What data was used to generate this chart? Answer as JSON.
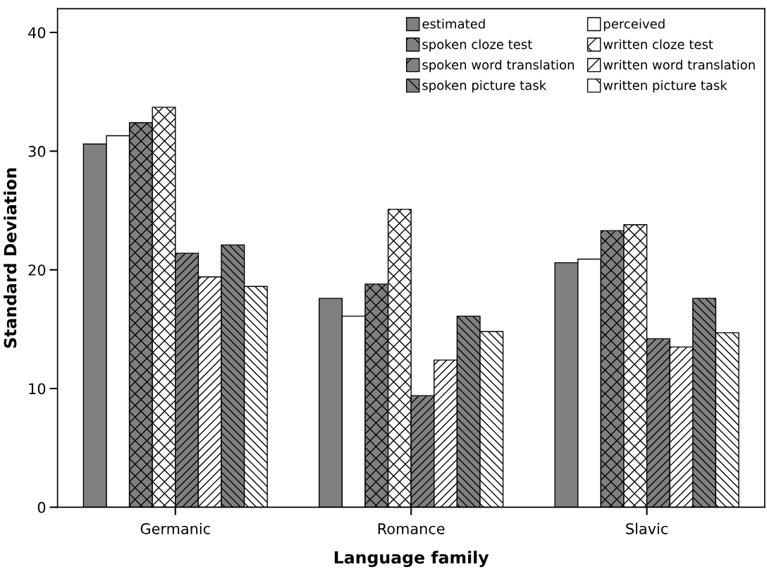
{
  "chart_data": {
    "type": "bar",
    "xlabel": "Language family",
    "ylabel": "Standard Deviation",
    "categories": [
      "Germanic",
      "Romance",
      "Slavic"
    ],
    "series": [
      {
        "name": "estimated",
        "color": "#808080",
        "values": [
          30.6,
          17.6,
          20.6
        ]
      },
      {
        "name": "perceived",
        "color": "#ffffff",
        "values": [
          31.3,
          16.1,
          20.9
        ]
      },
      {
        "name": "spoken cloze test",
        "color": "#808080",
        "values": [
          32.4,
          18.8,
          23.3
        ]
      },
      {
        "name": "written cloze test",
        "color": "#ffffff",
        "values": [
          33.7,
          25.1,
          23.8
        ]
      },
      {
        "name": "spoken word translation",
        "color": "#808080",
        "values": [
          21.4,
          9.4,
          14.2
        ]
      },
      {
        "name": "written word translation",
        "color": "#ffffff",
        "values": [
          19.4,
          12.4,
          13.5
        ]
      },
      {
        "name": "spoken picture task",
        "color": "#808080",
        "values": [
          22.1,
          16.1,
          17.6
        ]
      },
      {
        "name": "written picture task",
        "color": "#ffffff",
        "values": [
          18.6,
          14.8,
          14.7
        ]
      }
    ],
    "ylim": [
      0,
      42
    ],
    "yticks": [
      0,
      10,
      20,
      30,
      40
    ],
    "grid": false,
    "legend": "top right"
  }
}
